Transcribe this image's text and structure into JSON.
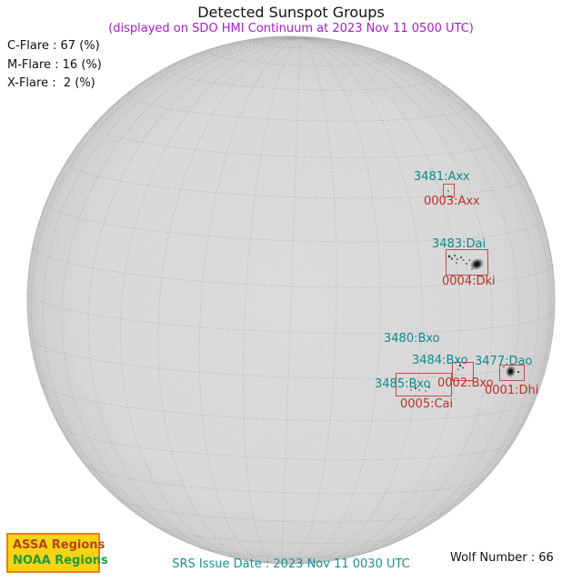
{
  "title": "Detected Sunspot Groups",
  "subtitle": "(displayed on SDO HMI Continuum at 2023 Nov 11 0500 UTC)",
  "flare_probabilities": {
    "c_flare": "C-Flare : 67 (%)",
    "m_flare": "M-Flare : 16 (%)",
    "x_flare": "X-Flare :  2 (%)"
  },
  "regions": {
    "r3481": {
      "assa": "3481:Axx",
      "noaa": "0003:Axx"
    },
    "r3483": {
      "assa": "3483:Dai",
      "noaa": "0004:Dki"
    },
    "r3480": {
      "assa": "3480:Bxo"
    },
    "r3484": {
      "assa": "3484:Bxo",
      "noaa": "0002:Bxo"
    },
    "r3477": {
      "assa": "3477:Dao",
      "noaa": "0001:Dhi"
    },
    "r3485": {
      "assa": "3485:Bxo",
      "noaa": "0005:Cai"
    }
  },
  "legend": {
    "assa_label": "ASSA Regions",
    "noaa_label": "NOAA Regions"
  },
  "footer": {
    "srs_issue_date": "SRS Issue Date : 2023 Nov 11 0030 UTC",
    "wolf_number": "Wolf Number : 66"
  },
  "colors": {
    "subtitle": "#a81cc8",
    "assa-label": "#0e8a8a",
    "noaa-label": "#be3026",
    "region-box": "#c24c4c",
    "legend-bg": "#f5d416",
    "legend-border": "#ee7d1e",
    "legend-assa": "#b2441c",
    "legend-noaa": "#1d9a3f",
    "footer-teal": "#15918f",
    "disk-gray": "#dadada"
  },
  "chart_data": {
    "type": "scatter",
    "title": "Detected Sunspot Groups",
    "subtitle": "(displayed on SDO HMI Continuum at 2023 Nov 11 0500 UTC)",
    "flare_probability_pct": {
      "C": 67,
      "M": 16,
      "X": 2
    },
    "wolf_number": 66,
    "srs_issue_date": "2023 Nov 11 0030 UTC",
    "sunspot_groups": [
      {
        "assa_region": "3481:Axx",
        "noaa_region": "0003:Axx",
        "disk_position": "upper right of center"
      },
      {
        "assa_region": "3483:Dai",
        "noaa_region": "0004:Dki",
        "disk_position": "right of center, large spot"
      },
      {
        "assa_region": "3480:Bxo",
        "noaa_region": null,
        "disk_position": "lower right of center"
      },
      {
        "assa_region": "3484:Bxo",
        "noaa_region": "0002:Bxo",
        "disk_position": "lower right of center"
      },
      {
        "assa_region": "3477:Dao",
        "noaa_region": "0001:Dhi",
        "disk_position": "lower right, near limb, dark spot"
      },
      {
        "assa_region": "3485:Bxo",
        "noaa_region": "0005:Cai",
        "disk_position": "lower right of center"
      }
    ],
    "legend_entries": [
      "ASSA Regions",
      "NOAA Regions"
    ],
    "layout_hints": {
      "grid": "10 deg heliographic dotted grid",
      "disk": "full solar disk, gray continuum"
    }
  }
}
